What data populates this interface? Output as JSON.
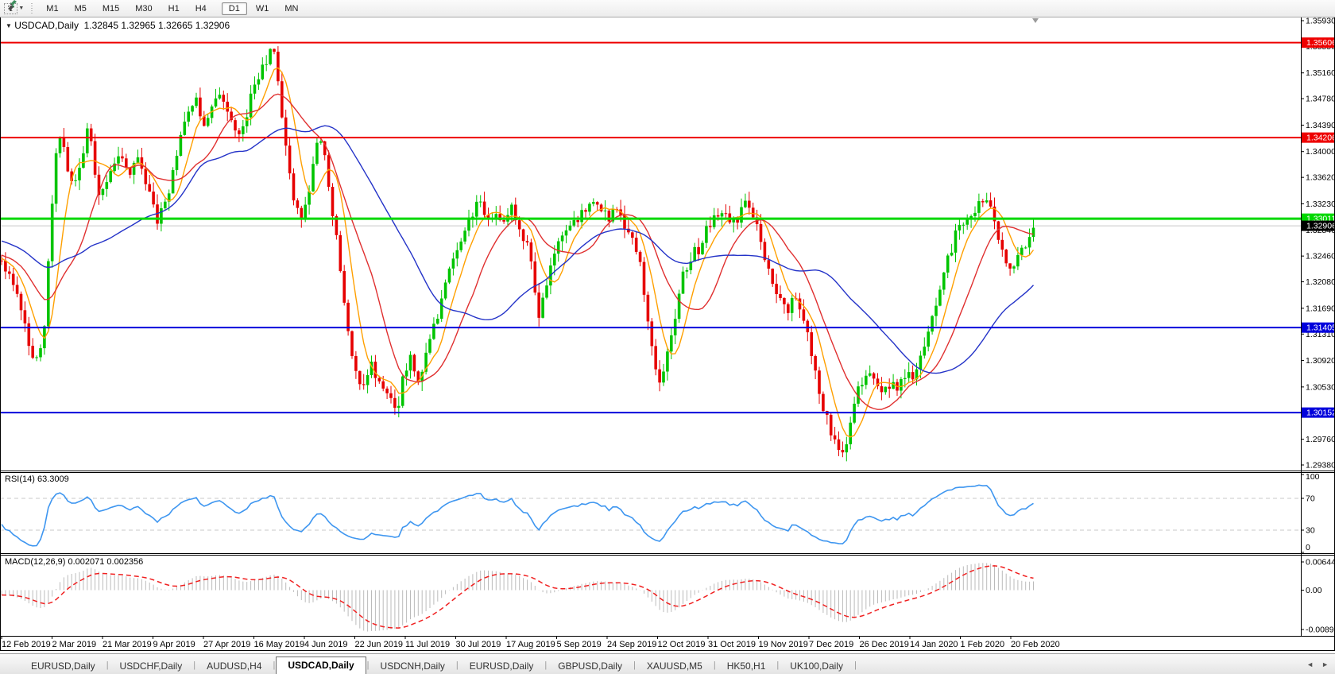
{
  "toolbar": {
    "text_tool_label": "T",
    "timeframes": [
      "M1",
      "M5",
      "M15",
      "M30",
      "H1",
      "H4",
      "D1",
      "W1",
      "MN"
    ],
    "active_timeframe": "D1"
  },
  "icons": {
    "symbol_caret": "▼",
    "dropdown_caret": "▼",
    "tab_scroll_left": "◄",
    "tab_scroll_right": "►"
  },
  "chart": {
    "title_line": "USDCAD,Daily  1.32845 1.32965 1.32665 1.32906",
    "rsi_label": "RSI(14) 63.3009",
    "macd_label": "MACD(12,26,9) 0.002071 0.002356"
  },
  "tabs": {
    "items": [
      "EURUSD,Daily",
      "USDCHF,Daily",
      "AUDUSD,H4",
      "USDCAD,Daily",
      "USDCNH,Daily",
      "EURUSD,Daily",
      "GBPUSD,Daily",
      "XAUUSD,M5",
      "HK50,H1",
      "UK100,Daily"
    ],
    "active_index": 3
  },
  "chart_data": {
    "type": "candlestick",
    "symbol": "USDCAD",
    "timeframe": "Daily",
    "last_ohlc": {
      "open": 1.32845,
      "high": 1.32965,
      "low": 1.32665,
      "close": 1.32906
    },
    "price_ticks": [
      "1.35930",
      "1.35550",
      "1.35160",
      "1.34780",
      "1.34390",
      "1.34000",
      "1.33620",
      "1.33230",
      "1.32840",
      "1.32460",
      "1.32080",
      "1.31690",
      "1.31310",
      "1.30920",
      "1.30530",
      "1.30140",
      "1.29760",
      "1.29380"
    ],
    "date_labels": [
      "12 Feb 2019",
      "2 Mar 2019",
      "21 Mar 2019",
      "9 Apr 2019",
      "27 Apr 2019",
      "16 May 2019",
      "4 Jun 2019",
      "22 Jun 2019",
      "11 Jul 2019",
      "30 Jul 2019",
      "17 Aug 2019",
      "5 Sep 2019",
      "24 Sep 2019",
      "12 Oct 2019",
      "31 Oct 2019",
      "19 Nov 2019",
      "7 Dec 2019",
      "26 Dec 2019",
      "14 Jan 2020",
      "1 Feb 2020",
      "20 Feb 2020"
    ],
    "levels": [
      {
        "label": "1.35606",
        "price": 1.35606,
        "color": "#ee0000",
        "width": 2
      },
      {
        "label": "1.34206",
        "price": 1.34206,
        "color": "#ee0000",
        "width": 2
      },
      {
        "label": "1.33011",
        "price": 1.33011,
        "color": "#00d800",
        "width": 3
      },
      {
        "label": "1.31405",
        "price": 1.31405,
        "color": "#0000dc",
        "width": 2
      },
      {
        "label": "1.30152",
        "price": 1.30152,
        "color": "#0000dc",
        "width": 2
      }
    ],
    "bid": {
      "label": "1.32906",
      "price": 1.32906,
      "line_color": "#c8c8c8",
      "tag_bg": "#000000"
    },
    "candle_colors": {
      "up": "#00c400",
      "down": "#e60000"
    },
    "moving_averages": [
      {
        "name": "ma-fast",
        "period": 7,
        "color": "#ffa000"
      },
      {
        "name": "ma-medium",
        "period": 16,
        "color": "#e03030"
      },
      {
        "name": "ma-slow",
        "period": 40,
        "color": "#2433c8"
      }
    ],
    "price_path_anchors": [
      [
        2,
        1.3235
      ],
      [
        18,
        1.321
      ],
      [
        32,
        1.314
      ],
      [
        45,
        1.3085
      ],
      [
        55,
        1.3125
      ],
      [
        63,
        1.327
      ],
      [
        72,
        1.343
      ],
      [
        80,
        1.34
      ],
      [
        92,
        1.334
      ],
      [
        104,
        1.34
      ],
      [
        112,
        1.3435
      ],
      [
        124,
        1.334
      ],
      [
        136,
        1.336
      ],
      [
        150,
        1.34
      ],
      [
        162,
        1.336
      ],
      [
        174,
        1.339
      ],
      [
        186,
        1.334
      ],
      [
        198,
        1.33
      ],
      [
        210,
        1.333
      ],
      [
        222,
        1.34
      ],
      [
        234,
        1.346
      ],
      [
        246,
        1.3475
      ],
      [
        258,
        1.344
      ],
      [
        270,
        1.347
      ],
      [
        282,
        1.348
      ],
      [
        294,
        1.344
      ],
      [
        302,
        1.342
      ],
      [
        312,
        1.3465
      ],
      [
        322,
        1.35
      ],
      [
        334,
        1.353
      ],
      [
        345,
        1.3555
      ],
      [
        353,
        1.347
      ],
      [
        362,
        1.338
      ],
      [
        371,
        1.332
      ],
      [
        380,
        1.33
      ],
      [
        390,
        1.335
      ],
      [
        399,
        1.3405
      ],
      [
        407,
        1.3415
      ],
      [
        415,
        1.334
      ],
      [
        423,
        1.328
      ],
      [
        431,
        1.319
      ],
      [
        440,
        1.312
      ],
      [
        449,
        1.3075
      ],
      [
        457,
        1.305
      ],
      [
        465,
        1.309
      ],
      [
        474,
        1.3065
      ],
      [
        483,
        1.305
      ],
      [
        491,
        1.303
      ],
      [
        500,
        1.302
      ],
      [
        508,
        1.3075
      ],
      [
        516,
        1.3095
      ],
      [
        524,
        1.3055
      ],
      [
        532,
        1.308
      ],
      [
        542,
        1.3125
      ],
      [
        552,
        1.3165
      ],
      [
        562,
        1.3205
      ],
      [
        572,
        1.3245
      ],
      [
        582,
        1.3275
      ],
      [
        592,
        1.3305
      ],
      [
        602,
        1.333
      ],
      [
        612,
        1.329
      ],
      [
        622,
        1.3315
      ],
      [
        632,
        1.3295
      ],
      [
        642,
        1.332
      ],
      [
        652,
        1.3285
      ],
      [
        662,
        1.3265
      ],
      [
        670,
        1.3225
      ],
      [
        679,
        1.3155
      ],
      [
        688,
        1.3205
      ],
      [
        697,
        1.325
      ],
      [
        706,
        1.3275
      ],
      [
        716,
        1.3285
      ],
      [
        726,
        1.3295
      ],
      [
        736,
        1.3315
      ],
      [
        746,
        1.333
      ],
      [
        756,
        1.332
      ],
      [
        766,
        1.33
      ],
      [
        776,
        1.3315
      ],
      [
        786,
        1.3295
      ],
      [
        796,
        1.328
      ],
      [
        806,
        1.323
      ],
      [
        815,
        1.316
      ],
      [
        824,
        1.309
      ],
      [
        831,
        1.3055
      ],
      [
        839,
        1.3095
      ],
      [
        849,
        1.3155
      ],
      [
        859,
        1.3215
      ],
      [
        869,
        1.3245
      ],
      [
        879,
        1.3255
      ],
      [
        889,
        1.3285
      ],
      [
        899,
        1.3305
      ],
      [
        909,
        1.3315
      ],
      [
        919,
        1.329
      ],
      [
        929,
        1.3305
      ],
      [
        939,
        1.3325
      ],
      [
        949,
        1.33
      ],
      [
        959,
        1.326
      ],
      [
        969,
        1.322
      ],
      [
        979,
        1.319
      ],
      [
        989,
        1.316
      ],
      [
        999,
        1.3195
      ],
      [
        1009,
        1.317
      ],
      [
        1019,
        1.312
      ],
      [
        1029,
        1.306
      ],
      [
        1039,
        1.301
      ],
      [
        1049,
        1.298
      ],
      [
        1059,
        1.2955
      ],
      [
        1069,
        1.299
      ],
      [
        1079,
        1.3045
      ],
      [
        1089,
        1.3075
      ],
      [
        1099,
        1.3058
      ],
      [
        1109,
        1.3042
      ],
      [
        1119,
        1.3058
      ],
      [
        1129,
        1.3052
      ],
      [
        1139,
        1.3062
      ],
      [
        1149,
        1.3072
      ],
      [
        1158,
        1.309
      ],
      [
        1167,
        1.3125
      ],
      [
        1176,
        1.3165
      ],
      [
        1185,
        1.3205
      ],
      [
        1194,
        1.3245
      ],
      [
        1203,
        1.328
      ],
      [
        1212,
        1.33
      ],
      [
        1221,
        1.331
      ],
      [
        1230,
        1.3318
      ],
      [
        1240,
        1.3322
      ],
      [
        1248,
        1.3315
      ],
      [
        1256,
        1.3275
      ],
      [
        1264,
        1.325
      ],
      [
        1272,
        1.3228
      ],
      [
        1280,
        1.325
      ],
      [
        1288,
        1.3262
      ],
      [
        1296,
        1.3278
      ],
      [
        1303,
        1.3291
      ]
    ],
    "rsi": {
      "period": 14,
      "value_text": "63.3009",
      "color": "#3e96f0",
      "ticks": [
        "100",
        "70",
        "30",
        "0"
      ],
      "level_lines": [
        70,
        30
      ]
    },
    "macd": {
      "fast": 12,
      "slow": 26,
      "signal": 9,
      "values_text": "0.002071 0.002356",
      "hist_color": "#bbbbbb",
      "signal_color": "#f02020",
      "ticks": [
        "0.006448",
        "0.00",
        "-0.008982"
      ]
    }
  }
}
